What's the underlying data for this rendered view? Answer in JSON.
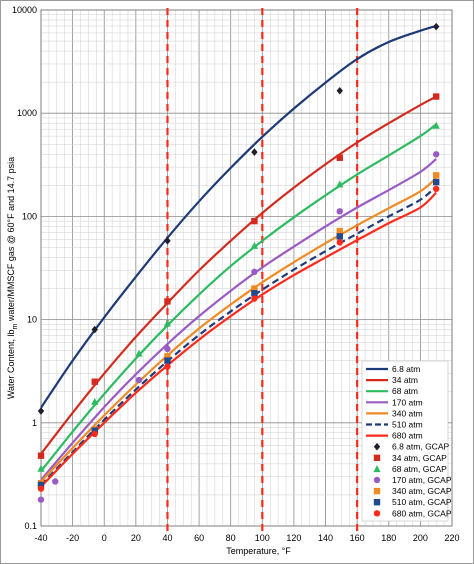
{
  "chart_data": {
    "type": "scatter",
    "xlabel": "Temperature, °F",
    "ylabel_parts": [
      "Water Content, lb",
      "m",
      " water/MMSCF gas @ 60°F and 14.7 psia"
    ],
    "xlim": [
      -40,
      220
    ],
    "ylim": [
      0.1,
      10000
    ],
    "y_scale": "log",
    "grid": true,
    "legend_position": "lower-right",
    "x_ticks": [
      -40,
      -20,
      0,
      20,
      40,
      60,
      80,
      100,
      120,
      140,
      160,
      180,
      200,
      220
    ],
    "y_ticks": [
      0.1,
      1,
      10,
      100,
      1000,
      10000
    ],
    "y_tick_labels": [
      "0.1",
      "1",
      "10",
      "100",
      "1000",
      "10000"
    ],
    "vlines": [
      40,
      100,
      160
    ],
    "vline_color": "#ff2a1a",
    "curves": [
      {
        "name": "6.8 atm",
        "color": "#1f3a78",
        "dash": false,
        "x": [
          -40,
          -20,
          0,
          20,
          40,
          60,
          80,
          100,
          120,
          140,
          160,
          180,
          200,
          210
        ],
        "y": [
          1.4,
          4.0,
          10.5,
          26,
          62,
          140,
          295,
          590,
          1110,
          1980,
          3350,
          4900,
          6300,
          7000
        ]
      },
      {
        "name": "34 atm",
        "color": "#d42a1e",
        "dash": false,
        "x": [
          -40,
          -20,
          0,
          20,
          40,
          60,
          80,
          100,
          120,
          140,
          160,
          180,
          200,
          210
        ],
        "y": [
          0.5,
          1.25,
          3.0,
          6.8,
          14.5,
          30,
          58,
          108,
          190,
          320,
          520,
          800,
          1200,
          1450
        ]
      },
      {
        "name": "68 atm",
        "color": "#2dbb62",
        "dash": false,
        "x": [
          -40,
          -20,
          0,
          20,
          40,
          60,
          80,
          100,
          120,
          140,
          160,
          180,
          200,
          210
        ],
        "y": [
          0.34,
          0.82,
          1.9,
          4.2,
          8.8,
          17.5,
          33,
          58,
          98,
          160,
          255,
          390,
          600,
          780
        ]
      },
      {
        "name": "170 atm",
        "color": "#9a5cc4",
        "dash": false,
        "x": [
          -40,
          -20,
          0,
          20,
          40,
          60,
          80,
          100,
          120,
          140,
          160,
          180,
          200,
          210
        ],
        "y": [
          0.28,
          0.64,
          1.42,
          2.95,
          5.8,
          10.8,
          19,
          32,
          51,
          80,
          122,
          180,
          270,
          360
        ]
      },
      {
        "name": "340 atm",
        "color": "#f08a24",
        "dash": false,
        "x": [
          -40,
          -20,
          0,
          20,
          40,
          60,
          80,
          100,
          120,
          140,
          160,
          180,
          200,
          210
        ],
        "y": [
          0.27,
          0.57,
          1.18,
          2.35,
          4.5,
          8.2,
          14,
          23,
          36,
          55,
          82,
          120,
          175,
          235
        ]
      },
      {
        "name": "510 atm",
        "color": "#1f3a78",
        "dash": true,
        "x": [
          -40,
          -20,
          0,
          20,
          40,
          60,
          80,
          100,
          120,
          140,
          160,
          180,
          200,
          210
        ],
        "y": [
          0.25,
          0.52,
          1.07,
          2.1,
          3.95,
          7.1,
          12,
          19.5,
          30.5,
          46,
          68,
          100,
          145,
          195
        ]
      },
      {
        "name": "680 atm",
        "color": "#ff2a1a",
        "dash": false,
        "x": [
          -40,
          -20,
          0,
          20,
          40,
          60,
          80,
          100,
          120,
          140,
          160,
          180,
          200,
          210
        ],
        "y": [
          0.24,
          0.5,
          1.0,
          1.95,
          3.6,
          6.4,
          10.8,
          17.5,
          27,
          40,
          59,
          86,
          122,
          170
        ]
      }
    ],
    "points": [
      {
        "name": "6.8 atm, GCAP",
        "color": "#1f1f2e",
        "marker": "diamond",
        "x": [
          -40,
          -6,
          40,
          95,
          149,
          210
        ],
        "y": [
          1.3,
          8.0,
          58,
          420,
          1650,
          6900
        ]
      },
      {
        "name": "34 atm, GCAP",
        "color": "#d42a1e",
        "marker": "square",
        "x": [
          -40,
          -6,
          40,
          95,
          149,
          210
        ],
        "y": [
          0.48,
          2.5,
          15,
          90,
          370,
          1450
        ]
      },
      {
        "name": "68 atm, GCAP",
        "color": "#2dbb62",
        "marker": "triangle",
        "x": [
          -40,
          -6,
          22,
          40,
          95,
          149,
          210
        ],
        "y": [
          0.36,
          1.6,
          4.7,
          9.2,
          52,
          205,
          760
        ]
      },
      {
        "name": "170 atm, GCAP",
        "color": "#9a5cc4",
        "marker": "circle",
        "x": [
          -40,
          -31,
          -6,
          22,
          40,
          95,
          149,
          210
        ],
        "y": [
          0.18,
          0.27,
          0.82,
          2.6,
          5.2,
          29,
          112,
          400
        ]
      },
      {
        "name": "340 atm, GCAP",
        "color": "#f08a24",
        "marker": "square",
        "x": [
          -40,
          -6,
          40,
          95,
          149,
          210
        ],
        "y": [
          0.26,
          0.86,
          4.4,
          20,
          72,
          250
        ]
      },
      {
        "name": "510 atm, GCAP",
        "color": "#1f4a8f",
        "marker": "square",
        "x": [
          -40,
          -6,
          40,
          95,
          149,
          210
        ],
        "y": [
          0.25,
          0.84,
          4.0,
          18,
          64,
          215
        ]
      },
      {
        "name": "680 atm, GCAP",
        "color": "#ff2a1a",
        "marker": "circle",
        "x": [
          -40,
          -6,
          40,
          95,
          149,
          210
        ],
        "y": [
          0.23,
          0.78,
          3.5,
          16,
          56,
          185
        ]
      }
    ]
  }
}
